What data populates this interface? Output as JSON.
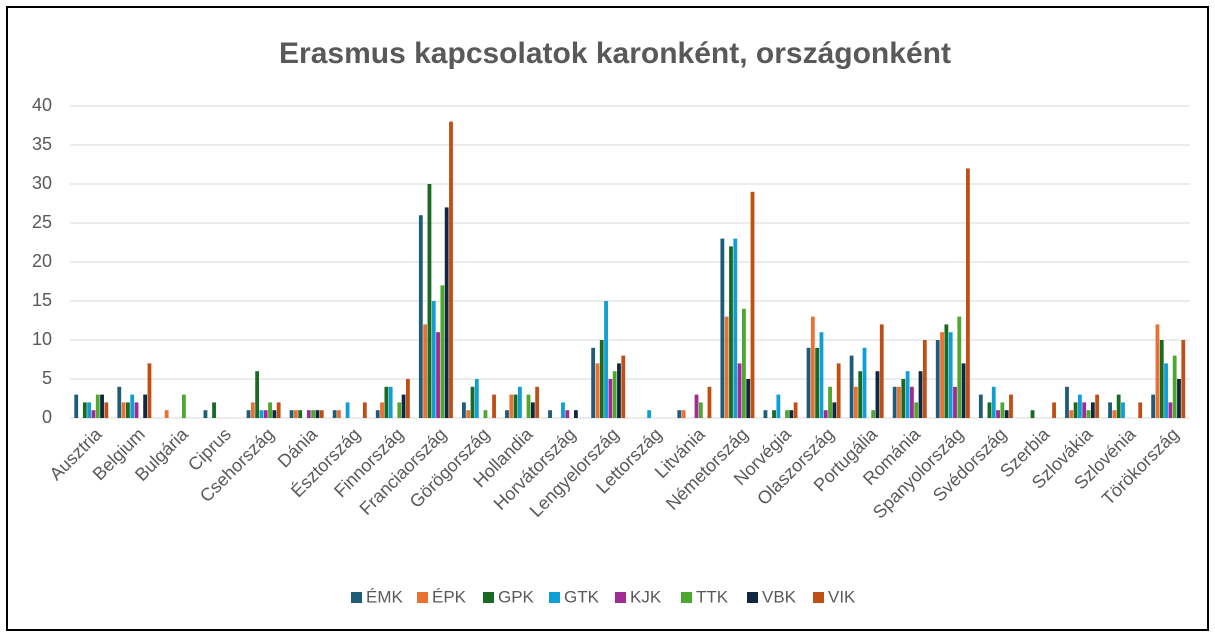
{
  "chart_data": {
    "type": "bar",
    "title": "Erasmus kapcsolatok karonként, országonként",
    "categories": [
      "Ausztria",
      "Belgium",
      "Bulgária",
      "Ciprus",
      "Csehország",
      "Dánia",
      "Észtország",
      "Finnország",
      "Franciaország",
      "Görögország",
      "Hollandia",
      "Horvátország",
      "Lengyelország",
      "Lettország",
      "Litvánia",
      "Németország",
      "Norvégia",
      "Olaszország",
      "Portugália",
      "Románia",
      "Spanyolország",
      "Svédország",
      "Szerbia",
      "Szlovákia",
      "Szlovénia",
      "Törökország"
    ],
    "series": [
      {
        "name": "ÉMK",
        "color": "#1f5c7a",
        "values": [
          3,
          4,
          0,
          1,
          1,
          1,
          1,
          1,
          26,
          2,
          1,
          1,
          9,
          0,
          1,
          23,
          1,
          9,
          8,
          4,
          10,
          3,
          0,
          4,
          2,
          3
        ]
      },
      {
        "name": "ÉPK",
        "color": "#e97132",
        "values": [
          0,
          2,
          1,
          0,
          2,
          1,
          1,
          2,
          12,
          1,
          3,
          0,
          7,
          0,
          1,
          13,
          0,
          13,
          4,
          4,
          11,
          0,
          0,
          1,
          1,
          12
        ]
      },
      {
        "name": "GPK",
        "color": "#196b24",
        "values": [
          2,
          2,
          0,
          2,
          6,
          1,
          0,
          4,
          30,
          4,
          3,
          0,
          10,
          0,
          0,
          22,
          1,
          9,
          6,
          5,
          12,
          2,
          1,
          2,
          3,
          10
        ]
      },
      {
        "name": "GTK",
        "color": "#0f9ed5",
        "values": [
          2,
          3,
          0,
          0,
          1,
          0,
          2,
          4,
          15,
          5,
          4,
          2,
          15,
          1,
          0,
          23,
          3,
          11,
          9,
          6,
          11,
          4,
          0,
          3,
          2,
          7
        ]
      },
      {
        "name": "KJK",
        "color": "#a02b93",
        "values": [
          1,
          2,
          0,
          0,
          1,
          1,
          0,
          0,
          11,
          0,
          0,
          1,
          5,
          0,
          3,
          7,
          0,
          1,
          0,
          4,
          4,
          1,
          0,
          2,
          0,
          2
        ]
      },
      {
        "name": "TTK",
        "color": "#4ea72e",
        "values": [
          3,
          0,
          3,
          0,
          2,
          1,
          0,
          2,
          17,
          1,
          3,
          0,
          6,
          0,
          2,
          14,
          1,
          4,
          1,
          2,
          13,
          2,
          0,
          1,
          0,
          8
        ]
      },
      {
        "name": "VBK",
        "color": "#0e2841",
        "values": [
          3,
          3,
          0,
          0,
          1,
          1,
          0,
          3,
          27,
          0,
          2,
          1,
          7,
          0,
          0,
          5,
          1,
          2,
          6,
          6,
          7,
          1,
          0,
          2,
          0,
          5
        ]
      },
      {
        "name": "VIK",
        "color": "#c04f15",
        "values": [
          2,
          7,
          0,
          0,
          2,
          1,
          2,
          5,
          38,
          3,
          4,
          0,
          8,
          0,
          4,
          29,
          2,
          7,
          12,
          10,
          32,
          3,
          2,
          3,
          2,
          10
        ]
      }
    ],
    "ylim": [
      0,
      40
    ],
    "yticks": [
      0,
      5,
      10,
      15,
      20,
      25,
      30,
      35,
      40
    ],
    "grid": true,
    "legend": "bottom"
  }
}
